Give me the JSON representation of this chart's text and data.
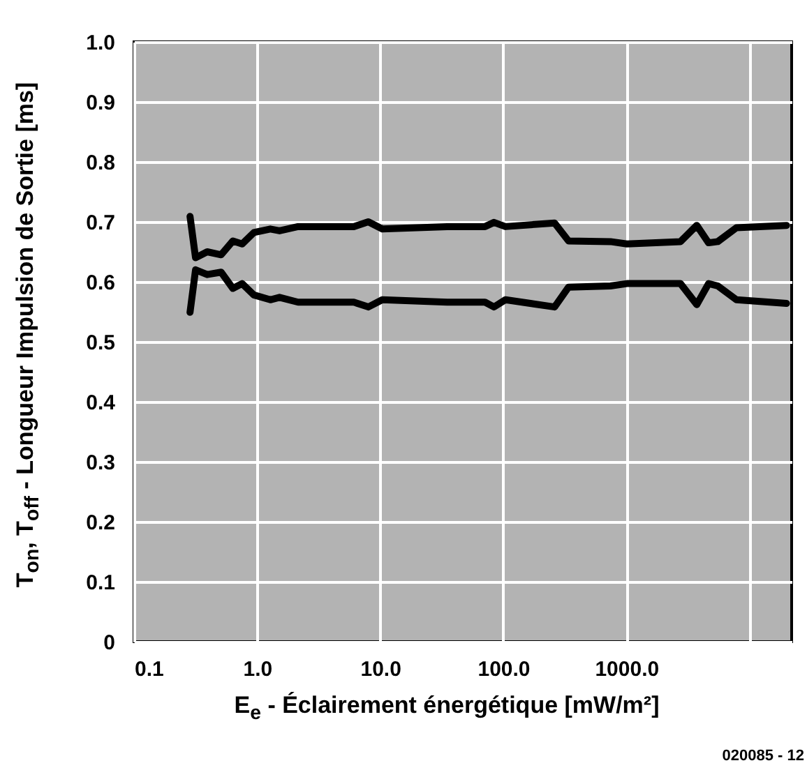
{
  "chart_data": {
    "type": "line",
    "xlabel": "E$_{e}$ - Éclairement énergétique  [mW/m²]",
    "ylabel": "T$_{on}$, T$_{off}$ - Longueur Impulsion de Sortie  [ms]",
    "annotations": [
      "020085 - 12"
    ],
    "x": [
      0.285,
      0.316,
      0.393,
      0.51,
      0.635,
      0.755,
      0.94,
      1.28,
      1.52,
      2.15,
      6.1,
      8.0,
      10.4,
      35,
      71,
      84,
      104,
      261,
      339,
      742,
      1009,
      2750,
      3730,
      4650,
      5530,
      7830,
      20000
    ],
    "series": [
      {
        "color": "#000000",
        "values": [
          0.709,
          0.64,
          0.65,
          0.645,
          0.668,
          0.663,
          0.682,
          0.688,
          0.685,
          0.692,
          0.692,
          0.7,
          0.688,
          0.692,
          0.692,
          0.699,
          0.692,
          0.698,
          0.668,
          0.667,
          0.663,
          0.667,
          0.694,
          0.665,
          0.667,
          0.69,
          0.694
        ]
      },
      {
        "color": "#000000",
        "values": [
          0.549,
          0.62,
          0.612,
          0.616,
          0.589,
          0.597,
          0.578,
          0.57,
          0.574,
          0.566,
          0.566,
          0.558,
          0.57,
          0.566,
          0.566,
          0.558,
          0.57,
          0.558,
          0.591,
          0.593,
          0.597,
          0.597,
          0.562,
          0.597,
          0.593,
          0.57,
          0.564
        ]
      }
    ],
    "log": "x",
    "xlim": [
      0.1,
      22000
    ],
    "xticks": [
      0.1,
      {
        "value": 1,
        "label": "1.0"
      },
      {
        "value": 10,
        "label": "10.0"
      },
      {
        "value": 100,
        "label": "100.0"
      },
      {
        "value": 1000,
        "label": "1000.0"
      },
      {
        "value": 10000,
        "label": null
      }
    ],
    "ylim": [
      0,
      1
    ],
    "yticks": [
      0,
      0.1,
      0.2,
      0.3,
      0.4,
      0.5,
      0.6,
      0.7,
      0.8,
      0.9,
      {
        "value": 1,
        "label": "1.0"
      }
    ],
    "grid": true
  }
}
